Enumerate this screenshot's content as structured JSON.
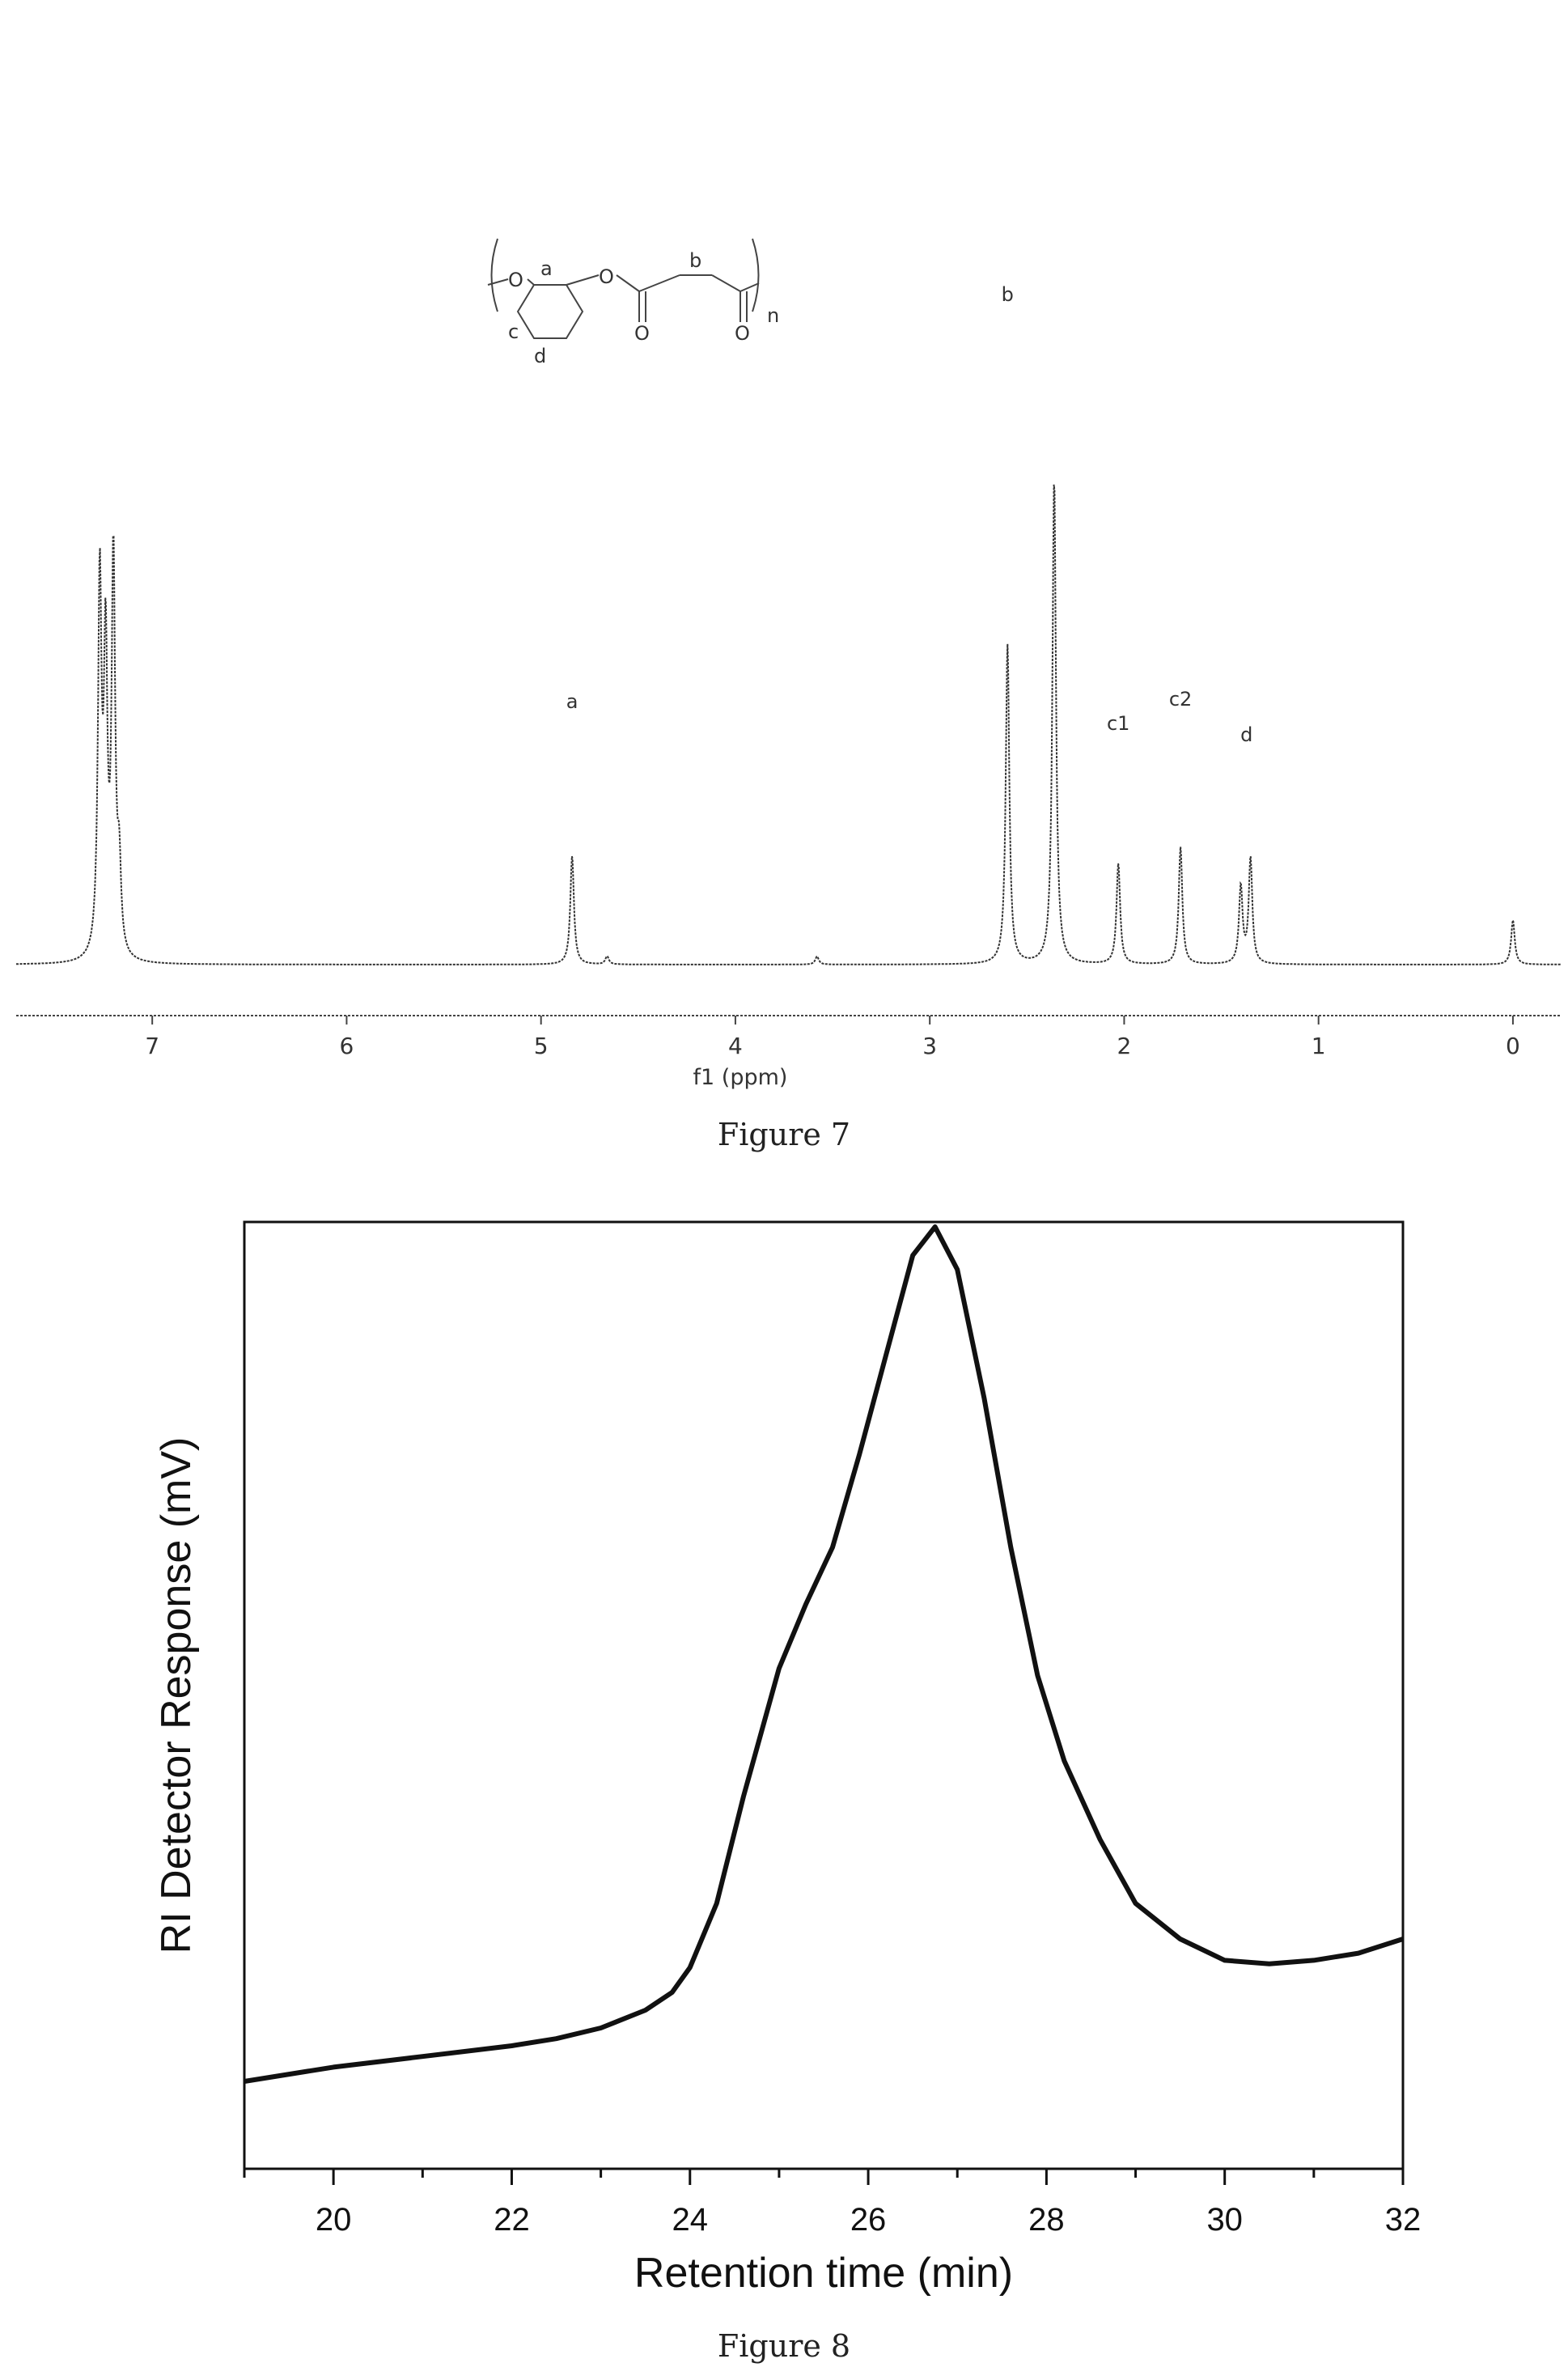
{
  "figure7": {
    "caption": "Figure 7",
    "structure": {
      "labels": [
        "a",
        "b",
        "c",
        "d",
        "n"
      ],
      "oxygen": "O",
      "carbonyl_oxygen": "O"
    },
    "peak_labels": [
      {
        "text": "a",
        "ppm": 4.84
      },
      {
        "text": "b",
        "ppm": 2.6
      },
      {
        "text": "c1",
        "ppm": 2.03
      },
      {
        "text": "c2",
        "ppm": 1.71
      },
      {
        "text": "d",
        "ppm": 1.37
      }
    ]
  },
  "figure8": {
    "caption": "Figure 8"
  },
  "chart_data": [
    {
      "type": "line",
      "xlabel": "f1 (ppm)",
      "ylabel": "",
      "xlim": [
        7.7,
        -0.25
      ],
      "x_reversed": true,
      "xticks": [
        7,
        6,
        5,
        4,
        3,
        2,
        1,
        0
      ],
      "y_axis_visible": false,
      "series": [
        {
          "peaks": [
            {
              "ppm": 7.27,
              "intensity": 0.92
            },
            {
              "ppm": 7.24,
              "intensity": 0.73
            },
            {
              "ppm": 7.2,
              "intensity": 0.98
            },
            {
              "ppm": 7.17,
              "intensity": 0.2
            },
            {
              "ppm": 4.84,
              "intensity": 0.27
            },
            {
              "ppm": 4.66,
              "intensity": 0.02
            },
            {
              "ppm": 3.58,
              "intensity": 0.02
            },
            {
              "ppm": 2.6,
              "intensity": 0.79
            },
            {
              "ppm": 2.36,
              "intensity": 1.2
            },
            {
              "ppm": 2.03,
              "intensity": 0.25
            },
            {
              "ppm": 1.71,
              "intensity": 0.29
            },
            {
              "ppm": 1.4,
              "intensity": 0.19
            },
            {
              "ppm": 1.35,
              "intensity": 0.26
            },
            {
              "ppm": 0.0,
              "intensity": 0.11
            }
          ]
        }
      ]
    },
    {
      "type": "line",
      "xlabel": "Retention time (min)",
      "ylabel": "RI Detector Response (mV)",
      "xlim": [
        19,
        32
      ],
      "xticks": [
        20,
        22,
        24,
        26,
        28,
        30,
        32
      ],
      "y_axis_visible": true,
      "y_tick_labels_visible": false,
      "series": [
        {
          "x": [
            19,
            20,
            21,
            22,
            22.5,
            23,
            23.5,
            23.8,
            24.0,
            24.3,
            24.6,
            25.0,
            25.3,
            25.6,
            25.9,
            26.2,
            26.5,
            26.75,
            27.0,
            27.3,
            27.6,
            27.9,
            28.2,
            28.6,
            29.0,
            29.5,
            30.0,
            30.5,
            31.0,
            31.5,
            32.0
          ],
          "y": [
            0.0,
            0.02,
            0.035,
            0.05,
            0.06,
            0.075,
            0.1,
            0.125,
            0.16,
            0.25,
            0.4,
            0.58,
            0.67,
            0.75,
            0.88,
            1.02,
            1.16,
            1.2,
            1.14,
            0.96,
            0.75,
            0.57,
            0.45,
            0.34,
            0.25,
            0.2,
            0.17,
            0.165,
            0.17,
            0.18,
            0.2
          ]
        }
      ]
    }
  ]
}
